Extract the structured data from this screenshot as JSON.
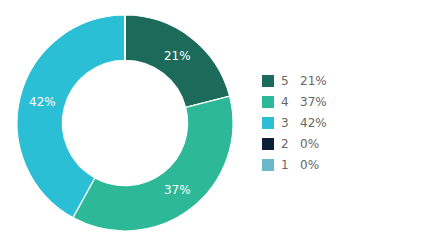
{
  "chart_data": {
    "type": "pie",
    "categories": [
      "5   21%",
      "4   37%",
      "3   42%",
      "2   0%",
      "1   0%"
    ],
    "values": [
      21,
      37,
      42,
      0.0001,
      0.0001
    ],
    "value_labels": [
      "21%",
      "37%",
      "42%",
      null,
      null
    ],
    "colors": [
      "#1c6b5a",
      "#2db897",
      "#2bbfd6",
      "#0d1f3c",
      "#6ab8c8"
    ],
    "data_labels": true,
    "legend": "right"
  }
}
